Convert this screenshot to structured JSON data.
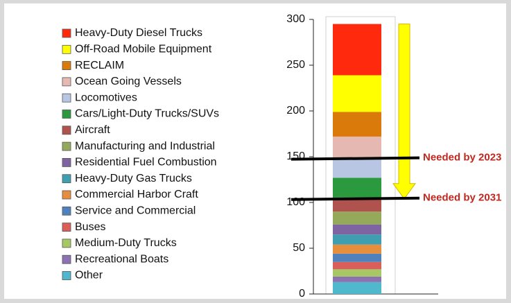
{
  "chart_data": {
    "type": "bar",
    "stacked": true,
    "series": [
      {
        "name": "Heavy-Duty Diesel Trucks",
        "color": "#ff2a0e",
        "values": [
          56
        ]
      },
      {
        "name": "Off-Road Mobile Equipment",
        "color": "#ffff00",
        "values": [
          40
        ]
      },
      {
        "name": "RECLAIM",
        "color": "#d97a0a",
        "values": [
          27
        ]
      },
      {
        "name": "Ocean Going Vessels",
        "color": "#e5b9b2",
        "values": [
          23
        ]
      },
      {
        "name": "Locomotives",
        "color": "#b8c6e3",
        "values": [
          22
        ]
      },
      {
        "name": "Cars/Light-Duty Trucks/SUVs",
        "color": "#2b9a3e",
        "values": [
          22
        ]
      },
      {
        "name": "Aircraft",
        "color": "#b0524d",
        "values": [
          15
        ]
      },
      {
        "name": "Manufacturing and Industrial",
        "color": "#94aa5a",
        "values": [
          14
        ]
      },
      {
        "name": "Residential Fuel Combustion",
        "color": "#7e64a0",
        "values": [
          11
        ]
      },
      {
        "name": "Heavy-Duty Gas Trucks",
        "color": "#3f9fb0",
        "values": [
          11
        ]
      },
      {
        "name": "Commercial Harbor Craft",
        "color": "#e58f3e",
        "values": [
          10
        ]
      },
      {
        "name": "Service and Commercial",
        "color": "#4f81bd",
        "values": [
          9
        ]
      },
      {
        "name": "Buses",
        "color": "#d9605a",
        "values": [
          8
        ]
      },
      {
        "name": "Medium-Duty Trucks",
        "color": "#a7c865",
        "values": [
          8
        ]
      },
      {
        "name": "Recreational Boats",
        "color": "#8c72b0",
        "values": [
          6
        ]
      },
      {
        "name": "Other",
        "color": "#4fb8cc",
        "values": [
          13
        ]
      }
    ],
    "ylim": [
      0,
      300
    ],
    "yticks": [
      0,
      50,
      100,
      150,
      200,
      250,
      300
    ],
    "annotations": [
      {
        "text": "Needed by 2023",
        "value": 148
      },
      {
        "text": "Needed by 2031",
        "value": 104
      }
    ]
  }
}
